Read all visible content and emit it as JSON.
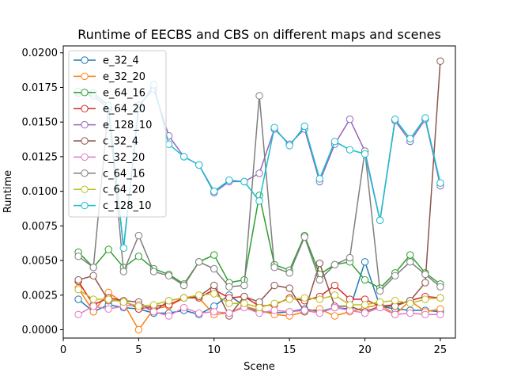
{
  "chart_data": {
    "type": "line",
    "title": "Runtime of EECBS and CBS on different maps and scenes",
    "xlabel": "Scene",
    "ylabel": "Runtime",
    "xlim": [
      0,
      26
    ],
    "ylim": [
      -0.0006,
      0.0205
    ],
    "xticks": [
      0,
      5,
      10,
      15,
      20,
      25
    ],
    "xtick_labels": [
      "0",
      "5",
      "10",
      "15",
      "20",
      "25"
    ],
    "yticks": [
      0.0,
      0.0025,
      0.005,
      0.0075,
      0.01,
      0.0125,
      0.015,
      0.0175,
      0.02
    ],
    "ytick_labels": [
      "0.0000",
      "0.0025",
      "0.0050",
      "0.0075",
      "0.0100",
      "0.0125",
      "0.0150",
      "0.0175",
      "0.0200"
    ],
    "grid": false,
    "legend_position": "upper-left",
    "x": [
      1,
      2,
      3,
      4,
      5,
      6,
      7,
      8,
      9,
      10,
      11,
      12,
      13,
      14,
      15,
      16,
      17,
      18,
      19,
      20,
      21,
      22,
      23,
      24,
      25
    ],
    "series": [
      {
        "name": "e_32_4",
        "color": "#1f77b4",
        "values": [
          0.0022,
          0.0013,
          0.0018,
          0.0016,
          0.0015,
          0.0012,
          0.0012,
          0.0014,
          0.0011,
          0.0017,
          0.0025,
          0.0017,
          0.0013,
          0.0012,
          0.0013,
          0.0015,
          0.0013,
          0.0016,
          0.0015,
          0.0049,
          0.0017,
          0.0015,
          0.0014,
          0.0014,
          0.0013
        ]
      },
      {
        "name": "e_32_20",
        "color": "#ff7f0e",
        "values": [
          0.003,
          0.0013,
          0.0027,
          0.0019,
          0.0,
          0.0015,
          0.0017,
          0.0023,
          0.0023,
          0.0011,
          0.0012,
          0.0017,
          0.0014,
          0.0011,
          0.001,
          0.0013,
          0.0015,
          0.001,
          0.0013,
          0.0016,
          0.0018,
          0.0011,
          0.0021,
          0.0013,
          0.0015
        ]
      },
      {
        "name": "e_64_16",
        "color": "#2ca02c",
        "values": [
          0.0056,
          0.0045,
          0.0058,
          0.0045,
          0.0053,
          0.0044,
          0.004,
          0.0033,
          0.0049,
          0.0054,
          0.0034,
          0.0036,
          0.0097,
          0.0047,
          0.0043,
          0.0068,
          0.004,
          0.0047,
          0.0049,
          0.0036,
          0.003,
          0.0041,
          0.0054,
          0.0041,
          0.0033
        ]
      },
      {
        "name": "e_64_20",
        "color": "#d62728",
        "values": [
          0.0035,
          0.0018,
          0.0023,
          0.0021,
          0.0015,
          0.0017,
          0.0018,
          0.0023,
          0.0023,
          0.0029,
          0.0023,
          0.0024,
          0.0017,
          0.0018,
          0.0023,
          0.0021,
          0.0024,
          0.0032,
          0.0022,
          0.0022,
          0.0017,
          0.0018,
          0.0021,
          0.0024,
          0.0023
        ]
      },
      {
        "name": "e_128_10",
        "color": "#9467bd",
        "values": [
          0.0171,
          0.0169,
          0.016,
          0.0059,
          0.0162,
          0.0174,
          0.014,
          0.0125,
          0.0119,
          0.0099,
          0.0107,
          0.0107,
          0.0113,
          0.0145,
          0.0134,
          0.0145,
          0.0107,
          0.0134,
          0.0152,
          0.0129,
          0.0079,
          0.0151,
          0.0136,
          0.0152,
          0.0104
        ]
      },
      {
        "name": "c_32_4",
        "color": "#8c564b",
        "values": [
          0.0036,
          0.0039,
          0.0021,
          0.0021,
          0.002,
          0.0013,
          0.0021,
          0.0023,
          0.0024,
          0.0032,
          0.001,
          0.0024,
          0.002,
          0.0032,
          0.003,
          0.0013,
          0.0048,
          0.0017,
          0.0017,
          0.0013,
          0.0017,
          0.0017,
          0.0021,
          0.0034,
          0.0194
        ]
      },
      {
        "name": "c_32_20",
        "color": "#e377c2",
        "values": [
          0.0011,
          0.0017,
          0.0015,
          0.0017,
          0.0018,
          0.0013,
          0.001,
          0.0016,
          0.0012,
          0.0013,
          0.0012,
          0.0016,
          0.0012,
          0.0014,
          0.0013,
          0.0014,
          0.0012,
          0.0016,
          0.0014,
          0.0012,
          0.0016,
          0.0011,
          0.0012,
          0.0011,
          0.0011
        ]
      },
      {
        "name": "c_64_16",
        "color": "#7f7f7f",
        "values": [
          0.0053,
          0.0045,
          0.0161,
          0.0042,
          0.0068,
          0.0042,
          0.0039,
          0.0032,
          0.0049,
          0.0044,
          0.0031,
          0.0032,
          0.0169,
          0.0045,
          0.0041,
          0.0067,
          0.0036,
          0.0047,
          0.0052,
          0.0129,
          0.0028,
          0.0039,
          0.0049,
          0.004,
          0.0031
        ]
      },
      {
        "name": "c_64_20",
        "color": "#bcbd22",
        "values": [
          0.0029,
          0.0022,
          0.0022,
          0.002,
          0.0017,
          0.0018,
          0.0021,
          0.0023,
          0.0025,
          0.0026,
          0.0019,
          0.0019,
          0.0016,
          0.0019,
          0.0022,
          0.0023,
          0.0022,
          0.0025,
          0.0018,
          0.0018,
          0.002,
          0.0021,
          0.0019,
          0.0022,
          0.0023
        ]
      },
      {
        "name": "c_128_10",
        "color": "#17becf",
        "values": [
          0.0172,
          0.0171,
          0.0162,
          0.0059,
          0.016,
          0.0177,
          0.0134,
          0.0125,
          0.0119,
          0.01,
          0.0108,
          0.0107,
          0.0093,
          0.0146,
          0.0133,
          0.0147,
          0.0109,
          0.0136,
          0.013,
          0.0127,
          0.0079,
          0.0152,
          0.0138,
          0.0153,
          0.0106
        ]
      }
    ]
  }
}
